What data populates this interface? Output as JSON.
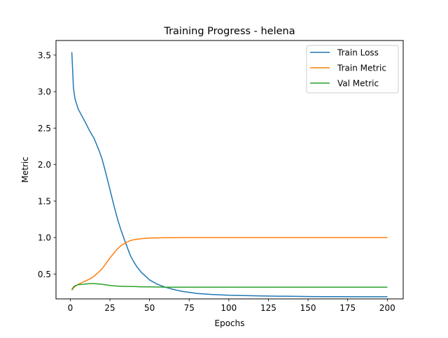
{
  "chart_data": {
    "type": "line",
    "title": "Training Progress - helena",
    "xlabel": "Epochs",
    "ylabel": "Metric",
    "xlim": [
      -9,
      210
    ],
    "ylim": [
      0.16,
      3.7
    ],
    "xticks": [
      0,
      25,
      50,
      75,
      100,
      125,
      150,
      175,
      200
    ],
    "yticks": [
      0.5,
      1.0,
      1.5,
      2.0,
      2.5,
      3.0,
      3.5
    ],
    "ytick_labels": [
      "0.5",
      "1.0",
      "1.5",
      "2.0",
      "2.5",
      "3.0",
      "3.5"
    ],
    "grid": false,
    "legend": "top-right",
    "series": [
      {
        "name": "Train Loss",
        "color": "#1f77b4",
        "points": [
          [
            1,
            3.54
          ],
          [
            2,
            3.05
          ],
          [
            3,
            2.9
          ],
          [
            5,
            2.76
          ],
          [
            8,
            2.64
          ],
          [
            10,
            2.56
          ],
          [
            12,
            2.47
          ],
          [
            15,
            2.36
          ],
          [
            18,
            2.2
          ],
          [
            20,
            2.08
          ],
          [
            22,
            1.92
          ],
          [
            25,
            1.66
          ],
          [
            28,
            1.4
          ],
          [
            30,
            1.24
          ],
          [
            32,
            1.1
          ],
          [
            35,
            0.92
          ],
          [
            38,
            0.75
          ],
          [
            40,
            0.67
          ],
          [
            42,
            0.6
          ],
          [
            45,
            0.52
          ],
          [
            48,
            0.46
          ],
          [
            50,
            0.42
          ],
          [
            55,
            0.36
          ],
          [
            60,
            0.32
          ],
          [
            65,
            0.29
          ],
          [
            70,
            0.265
          ],
          [
            75,
            0.25
          ],
          [
            80,
            0.235
          ],
          [
            90,
            0.22
          ],
          [
            100,
            0.21
          ],
          [
            110,
            0.205
          ],
          [
            120,
            0.2
          ],
          [
            130,
            0.197
          ],
          [
            140,
            0.195
          ],
          [
            150,
            0.193
          ],
          [
            160,
            0.192
          ],
          [
            170,
            0.191
          ],
          [
            180,
            0.19
          ],
          [
            190,
            0.19
          ],
          [
            200,
            0.19
          ]
        ]
      },
      {
        "name": "Train Metric",
        "color": "#ff7f0e",
        "points": [
          [
            1,
            0.28
          ],
          [
            2,
            0.31
          ],
          [
            3,
            0.33
          ],
          [
            5,
            0.36
          ],
          [
            8,
            0.39
          ],
          [
            10,
            0.41
          ],
          [
            12,
            0.43
          ],
          [
            15,
            0.47
          ],
          [
            18,
            0.53
          ],
          [
            20,
            0.57
          ],
          [
            22,
            0.63
          ],
          [
            25,
            0.72
          ],
          [
            28,
            0.8
          ],
          [
            30,
            0.85
          ],
          [
            32,
            0.89
          ],
          [
            35,
            0.93
          ],
          [
            38,
            0.96
          ],
          [
            40,
            0.97
          ],
          [
            45,
            0.985
          ],
          [
            50,
            0.993
          ],
          [
            55,
            0.996
          ],
          [
            60,
            0.998
          ],
          [
            70,
            0.999
          ],
          [
            80,
            1.0
          ],
          [
            100,
            1.0
          ],
          [
            125,
            1.0
          ],
          [
            150,
            1.0
          ],
          [
            175,
            1.0
          ],
          [
            200,
            1.0
          ]
        ]
      },
      {
        "name": "Val Metric",
        "color": "#2ca02c",
        "points": [
          [
            1,
            0.29
          ],
          [
            2,
            0.32
          ],
          [
            3,
            0.34
          ],
          [
            5,
            0.355
          ],
          [
            8,
            0.36
          ],
          [
            10,
            0.365
          ],
          [
            12,
            0.37
          ],
          [
            15,
            0.37
          ],
          [
            18,
            0.365
          ],
          [
            20,
            0.36
          ],
          [
            25,
            0.345
          ],
          [
            30,
            0.335
          ],
          [
            35,
            0.33
          ],
          [
            40,
            0.33
          ],
          [
            45,
            0.325
          ],
          [
            50,
            0.325
          ],
          [
            60,
            0.32
          ],
          [
            70,
            0.32
          ],
          [
            80,
            0.32
          ],
          [
            100,
            0.32
          ],
          [
            125,
            0.32
          ],
          [
            150,
            0.32
          ],
          [
            175,
            0.32
          ],
          [
            200,
            0.32
          ]
        ]
      }
    ]
  }
}
